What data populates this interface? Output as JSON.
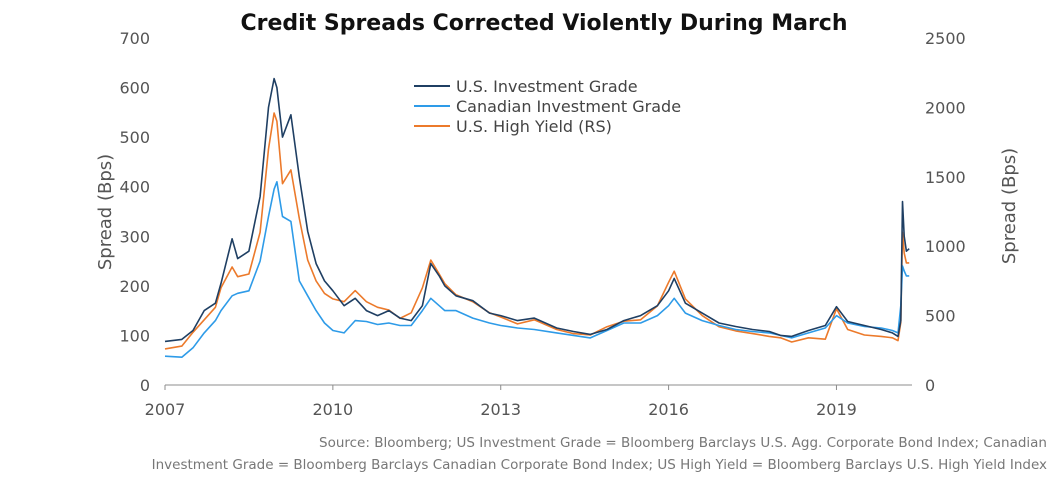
{
  "chart_data": {
    "type": "line",
    "title": "Credit Spreads Corrected Violently During March",
    "ylabel": "Spread (Bps)",
    "y2label": "Spread (Bps)",
    "ylim": [
      0,
      700
    ],
    "y2lim": [
      0,
      2500
    ],
    "xlim": [
      2007.0,
      2020.35
    ],
    "x_ticks": [
      "2007",
      "2010",
      "2013",
      "2016",
      "2019"
    ],
    "y_ticks": [
      "0",
      "100",
      "200",
      "300",
      "400",
      "500",
      "600",
      "700"
    ],
    "y2_ticks": [
      "0",
      "500",
      "1000",
      "1500",
      "2000",
      "2500"
    ],
    "legend_position": "top-center",
    "series": [
      {
        "name": "U.S. Investment Grade",
        "axis": "left",
        "color": "#1f3f63",
        "x": [
          2007.0,
          2007.3,
          2007.5,
          2007.7,
          2007.9,
          2008.0,
          2008.2,
          2008.3,
          2008.5,
          2008.7,
          2008.85,
          2008.95,
          2009.0,
          2009.1,
          2009.25,
          2009.4,
          2009.55,
          2009.7,
          2009.85,
          2010.0,
          2010.2,
          2010.4,
          2010.6,
          2010.8,
          2011.0,
          2011.2,
          2011.4,
          2011.6,
          2011.75,
          2011.9,
          2012.0,
          2012.2,
          2012.5,
          2012.8,
          2013.0,
          2013.3,
          2013.6,
          2014.0,
          2014.3,
          2014.6,
          2014.9,
          2015.2,
          2015.5,
          2015.8,
          2016.0,
          2016.1,
          2016.3,
          2016.6,
          2016.9,
          2017.2,
          2017.5,
          2017.8,
          2018.0,
          2018.2,
          2018.5,
          2018.8,
          2019.0,
          2019.2,
          2019.5,
          2019.8,
          2020.0,
          2020.1,
          2020.15,
          2020.18,
          2020.21,
          2020.25,
          2020.3
        ],
        "y": [
          88,
          92,
          110,
          150,
          165,
          205,
          295,
          255,
          270,
          380,
          560,
          618,
          600,
          500,
          545,
          420,
          310,
          245,
          210,
          190,
          160,
          175,
          150,
          140,
          150,
          135,
          130,
          160,
          245,
          220,
          200,
          180,
          170,
          145,
          140,
          130,
          135,
          115,
          108,
          102,
          112,
          130,
          140,
          160,
          190,
          215,
          165,
          145,
          125,
          118,
          112,
          108,
          100,
          98,
          110,
          120,
          158,
          128,
          120,
          112,
          105,
          98,
          130,
          370,
          300,
          270,
          275
        ]
      },
      {
        "name": "Canadian Investment Grade",
        "axis": "left",
        "color": "#2e9be8",
        "x": [
          2007.0,
          2007.3,
          2007.5,
          2007.7,
          2007.9,
          2008.0,
          2008.2,
          2008.3,
          2008.5,
          2008.7,
          2008.85,
          2008.95,
          2009.0,
          2009.1,
          2009.25,
          2009.4,
          2009.55,
          2009.7,
          2009.85,
          2010.0,
          2010.2,
          2010.4,
          2010.6,
          2010.8,
          2011.0,
          2011.2,
          2011.4,
          2011.6,
          2011.75,
          2011.9,
          2012.0,
          2012.2,
          2012.5,
          2012.8,
          2013.0,
          2013.3,
          2013.6,
          2014.0,
          2014.3,
          2014.6,
          2014.9,
          2015.2,
          2015.5,
          2015.8,
          2016.0,
          2016.1,
          2016.3,
          2016.6,
          2016.9,
          2017.2,
          2017.5,
          2017.8,
          2018.0,
          2018.2,
          2018.5,
          2018.8,
          2019.0,
          2019.2,
          2019.5,
          2019.8,
          2020.0,
          2020.1,
          2020.15,
          2020.18,
          2020.21,
          2020.25,
          2020.3
        ],
        "y": [
          58,
          56,
          75,
          105,
          130,
          150,
          180,
          185,
          190,
          250,
          340,
          395,
          410,
          340,
          330,
          210,
          180,
          150,
          125,
          110,
          105,
          130,
          128,
          122,
          125,
          120,
          120,
          150,
          175,
          160,
          150,
          150,
          135,
          125,
          120,
          115,
          112,
          105,
          100,
          95,
          110,
          125,
          125,
          140,
          160,
          175,
          145,
          130,
          120,
          112,
          108,
          105,
          100,
          95,
          105,
          115,
          140,
          125,
          118,
          115,
          110,
          105,
          160,
          240,
          230,
          220,
          220
        ]
      },
      {
        "name": "U.S. High Yield (RS)",
        "axis": "right",
        "color": "#ec7a2b",
        "x": [
          2007.0,
          2007.3,
          2007.5,
          2007.7,
          2007.9,
          2008.0,
          2008.2,
          2008.3,
          2008.5,
          2008.7,
          2008.85,
          2008.95,
          2009.0,
          2009.1,
          2009.25,
          2009.4,
          2009.55,
          2009.7,
          2009.85,
          2010.0,
          2010.2,
          2010.4,
          2010.6,
          2010.8,
          2011.0,
          2011.2,
          2011.4,
          2011.6,
          2011.75,
          2011.9,
          2012.0,
          2012.2,
          2012.5,
          2012.8,
          2013.0,
          2013.3,
          2013.6,
          2014.0,
          2014.3,
          2014.6,
          2014.9,
          2015.2,
          2015.5,
          2015.8,
          2016.0,
          2016.1,
          2016.3,
          2016.6,
          2016.9,
          2017.2,
          2017.5,
          2017.8,
          2018.0,
          2018.2,
          2018.5,
          2018.8,
          2019.0,
          2019.2,
          2019.5,
          2019.8,
          2020.0,
          2020.1,
          2020.15,
          2020.18,
          2020.21,
          2020.25,
          2020.3
        ],
        "y": [
          260,
          280,
          380,
          470,
          560,
          700,
          850,
          780,
          800,
          1100,
          1700,
          1960,
          1900,
          1450,
          1550,
          1200,
          900,
          750,
          660,
          620,
          600,
          680,
          600,
          560,
          540,
          480,
          520,
          700,
          900,
          800,
          730,
          650,
          600,
          520,
          490,
          440,
          470,
          400,
          370,
          360,
          420,
          460,
          470,
          570,
          740,
          820,
          620,
          500,
          420,
          390,
          370,
          350,
          340,
          310,
          340,
          330,
          550,
          400,
          360,
          350,
          340,
          320,
          450,
          1100,
          950,
          880,
          880
        ]
      }
    ]
  },
  "source_lines": [
    "Source: Bloomberg; US Investment Grade = Bloomberg Barclays U.S. Agg. Corporate Bond Index; Canadian",
    "Investment Grade = Bloomberg Barclays Canadian Corporate Bond Index; US High Yield = Bloomberg Barclays U.S. High Yield Index"
  ]
}
